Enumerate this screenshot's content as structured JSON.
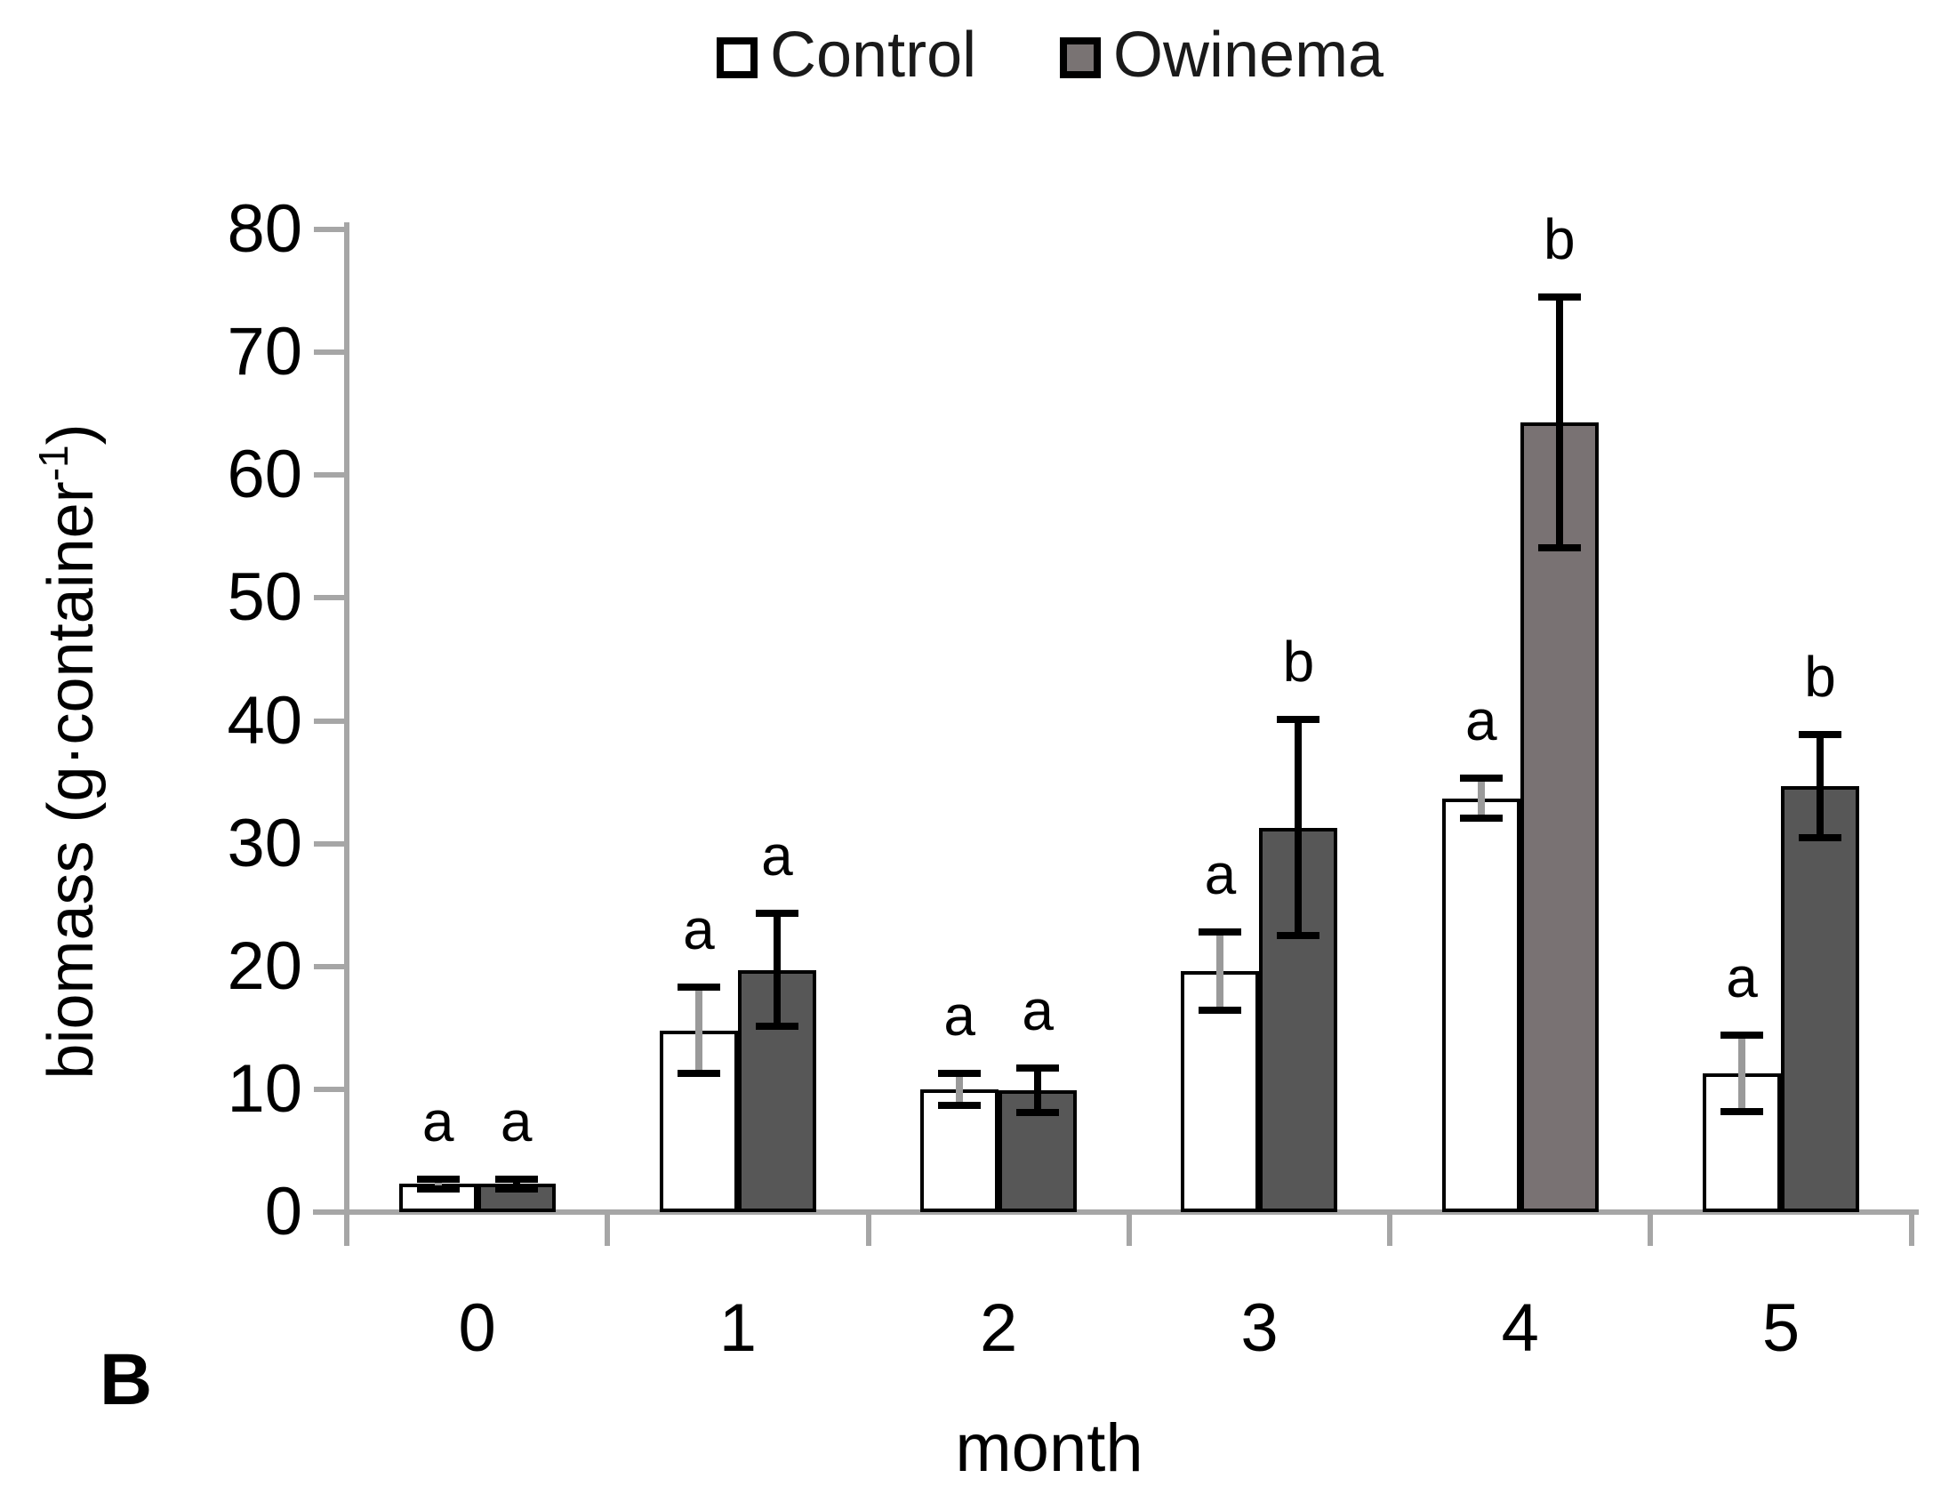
{
  "panel_label": "B",
  "legend": {
    "items": [
      {
        "label": "Control",
        "swatch_color": "#ffffff"
      },
      {
        "label": "Owinema",
        "swatch_color": "#797373"
      }
    ]
  },
  "chart_data": {
    "type": "bar",
    "title": "",
    "xlabel": "month",
    "ylabel": {
      "pre": "biomass (g·container",
      "sup": "-1",
      "post": ")"
    },
    "categories": [
      "0",
      "1",
      "2",
      "3",
      "4",
      "5"
    ],
    "ylim": [
      0,
      80
    ],
    "yticks": [
      0,
      10,
      20,
      30,
      40,
      50,
      60,
      70,
      80
    ],
    "grid": false,
    "legend_position": "top-center",
    "series": [
      {
        "name": "Control",
        "fill": "#ffffff",
        "values": [
          2.3,
          14.8,
          10.0,
          19.6,
          33.7,
          11.3
        ],
        "errors": [
          0.4,
          3.5,
          1.3,
          3.2,
          1.6,
          3.1
        ],
        "letters": [
          "a",
          "a",
          "a",
          "a",
          "a",
          "a"
        ]
      },
      {
        "name": "Owinema",
        "fill": "#575757",
        "bar_fills": [
          null,
          null,
          null,
          null,
          "#797273",
          null
        ],
        "values": [
          2.3,
          19.7,
          9.9,
          31.3,
          64.3,
          34.7
        ],
        "errors": [
          0.4,
          4.6,
          1.8,
          8.8,
          10.2,
          4.2
        ],
        "letters": [
          "a",
          "a",
          "a",
          "b",
          "b",
          "b"
        ]
      }
    ],
    "colors": {
      "axis": "#a6a6a6",
      "bar_border": "#000000",
      "control_error_stem": "#9a9a9a",
      "owinema_error_stem": "#000000",
      "error_cap": "#000000",
      "text": "#000000"
    }
  }
}
